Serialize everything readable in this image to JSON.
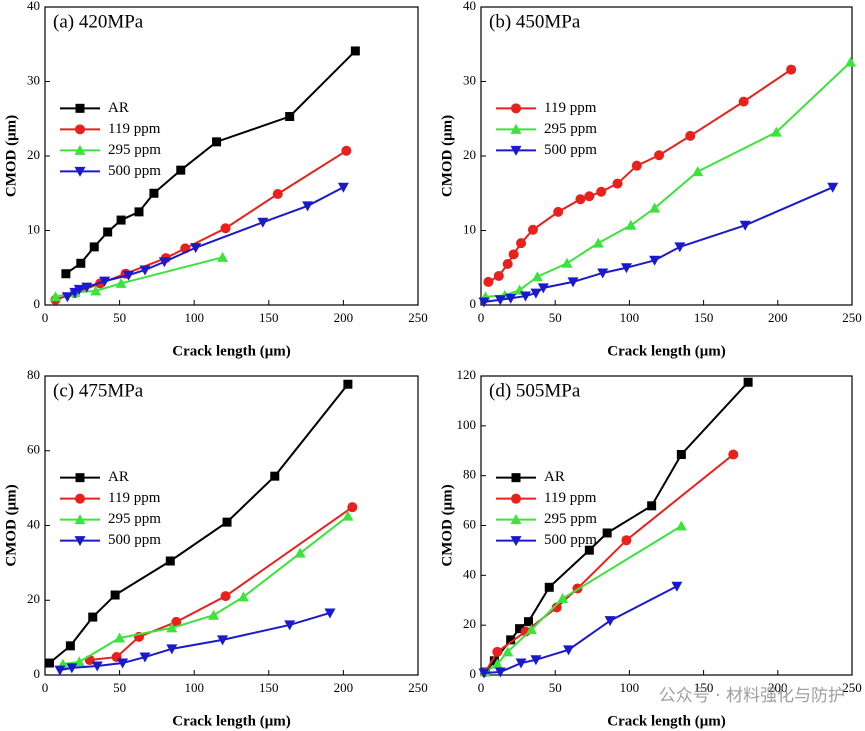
{
  "chart_data": [
    {
      "type": "line",
      "title": "(a) 420MPa",
      "x_label": "Crack length (μm)",
      "y_label": "CMOD (μm)",
      "xlim": [
        0,
        250
      ],
      "xticks": [
        0,
        50,
        100,
        150,
        200,
        250
      ],
      "ylim": [
        0,
        40
      ],
      "yticks": [
        0,
        10,
        20,
        30,
        40
      ],
      "legend": "upper left",
      "series": [
        {
          "name": "AR",
          "color": "#000000",
          "marker": "square",
          "x": [
            14,
            24,
            33,
            42,
            51,
            63,
            73,
            91,
            115,
            164,
            208
          ],
          "values": [
            4.2,
            5.6,
            7.8,
            9.8,
            11.4,
            12.5,
            15.0,
            18.1,
            21.9,
            25.3,
            34.1
          ]
        },
        {
          "name": "119 ppm",
          "color": "#e8211c",
          "marker": "circle",
          "x": [
            7,
            20,
            37,
            54,
            81,
            94,
            121,
            156,
            202
          ],
          "values": [
            0.7,
            1.6,
            2.9,
            4.2,
            6.3,
            7.6,
            10.3,
            14.9,
            20.7
          ]
        },
        {
          "name": "295 ppm",
          "color": "#3ce33c",
          "marker": "triangle-up",
          "x": [
            7,
            20,
            34,
            51,
            119
          ],
          "values": [
            1.1,
            1.7,
            1.9,
            2.9,
            6.4
          ]
        },
        {
          "name": "500 ppm",
          "color": "#1a1acc",
          "marker": "triangle-down",
          "x": [
            15,
            20,
            23,
            28,
            40,
            56,
            67,
            80,
            101,
            146,
            176,
            200
          ],
          "values": [
            1.1,
            1.7,
            2.1,
            2.4,
            3.2,
            4.0,
            4.7,
            5.8,
            7.7,
            11.1,
            13.3,
            15.8
          ]
        }
      ]
    },
    {
      "type": "line",
      "title": "(b) 450MPa",
      "x_label": "Crack length (μm)",
      "y_label": "CMOD (μm)",
      "xlim": [
        0,
        250
      ],
      "xticks": [
        0,
        50,
        100,
        150,
        200,
        250
      ],
      "ylim": [
        0,
        40
      ],
      "yticks": [
        0,
        10,
        20,
        30,
        40
      ],
      "legend": "upper left",
      "series": [
        {
          "name": "119 ppm",
          "color": "#e8211c",
          "marker": "circle",
          "x": [
            5,
            12,
            18,
            22,
            27,
            35,
            52,
            67,
            73,
            81,
            92,
            105,
            120,
            141,
            177,
            209
          ],
          "values": [
            3.1,
            3.9,
            5.5,
            6.8,
            8.3,
            10.1,
            12.5,
            14.2,
            14.6,
            15.2,
            16.3,
            18.7,
            20.1,
            22.7,
            27.3,
            31.6
          ]
        },
        {
          "name": "295 ppm",
          "color": "#3ce33c",
          "marker": "triangle-up",
          "x": [
            3,
            16,
            26,
            38,
            58,
            79,
            101,
            117,
            146,
            199,
            249
          ],
          "values": [
            1.1,
            1.3,
            2.0,
            3.8,
            5.6,
            8.3,
            10.7,
            13.0,
            17.9,
            23.2,
            32.6
          ]
        },
        {
          "name": "500 ppm",
          "color": "#1a1acc",
          "marker": "triangle-down",
          "x": [
            2,
            13,
            20,
            30,
            37,
            42,
            62,
            82,
            98,
            117,
            134,
            178,
            237
          ],
          "values": [
            0.4,
            0.7,
            0.9,
            1.2,
            1.6,
            2.3,
            3.1,
            4.3,
            5.0,
            6.0,
            7.8,
            10.7,
            15.8
          ]
        }
      ]
    },
    {
      "type": "line",
      "title": "(c) 475MPa",
      "x_label": "Crack length (μm)",
      "y_label": "CMOD (μm)",
      "xlim": [
        0,
        250
      ],
      "xticks": [
        0,
        50,
        100,
        150,
        200,
        250
      ],
      "ylim": [
        0,
        80
      ],
      "yticks": [
        0,
        20,
        40,
        60,
        80
      ],
      "legend": "upper left",
      "series": [
        {
          "name": "AR",
          "color": "#000000",
          "marker": "square",
          "x": [
            3,
            17,
            32,
            47,
            84,
            122,
            154,
            203
          ],
          "values": [
            3.2,
            7.8,
            15.5,
            21.4,
            30.5,
            40.9,
            53.2,
            77.8
          ]
        },
        {
          "name": "119 ppm",
          "color": "#e8211c",
          "marker": "circle",
          "x": [
            30,
            48,
            63,
            88,
            121,
            206
          ],
          "values": [
            4.0,
            4.8,
            10.2,
            14.2,
            21.1,
            44.9
          ]
        },
        {
          "name": "295 ppm",
          "color": "#3ce33c",
          "marker": "triangle-up",
          "x": [
            12,
            23,
            50,
            85,
            113,
            133,
            171,
            203
          ],
          "values": [
            2.9,
            3.5,
            9.9,
            12.6,
            16.0,
            20.9,
            32.6,
            42.5
          ]
        },
        {
          "name": "500 ppm",
          "color": "#1a1acc",
          "marker": "triangle-down",
          "x": [
            10,
            18,
            35,
            52,
            67,
            85,
            119,
            164,
            191
          ],
          "values": [
            1.3,
            1.9,
            2.4,
            3.2,
            4.8,
            7.0,
            9.4,
            13.4,
            16.6
          ]
        }
      ]
    },
    {
      "type": "line",
      "title": "(d) 505MPa",
      "x_label": "Crack length (μm)",
      "y_label": "CMOD (μm)",
      "xlim": [
        0,
        250
      ],
      "xticks": [
        0,
        50,
        100,
        150,
        200,
        250
      ],
      "ylim": [
        0,
        120
      ],
      "yticks": [
        0,
        20,
        40,
        60,
        80,
        100,
        120
      ],
      "legend": "upper left",
      "series": [
        {
          "name": "AR",
          "color": "#000000",
          "marker": "square",
          "x": [
            3,
            9,
            20,
            26,
            32,
            46,
            73,
            85,
            115,
            135,
            180
          ],
          "values": [
            1.2,
            5.7,
            14.1,
            18.6,
            21.4,
            35.2,
            50.1,
            57.0,
            67.9,
            88.5,
            117.5
          ]
        },
        {
          "name": "119 ppm",
          "color": "#e8211c",
          "marker": "circle",
          "x": [
            3,
            11,
            30,
            51,
            65,
            98,
            170
          ],
          "values": [
            1.2,
            9.3,
            17.4,
            27.1,
            34.7,
            54.1,
            88.5
          ]
        },
        {
          "name": "295 ppm",
          "color": "#3ce33c",
          "marker": "triangle-up",
          "x": [
            3,
            11,
            18,
            34,
            55,
            135
          ],
          "values": [
            1.2,
            4.4,
            9.3,
            18.2,
            30.7,
            59.8
          ]
        },
        {
          "name": "500 ppm",
          "color": "#1a1acc",
          "marker": "triangle-down",
          "x": [
            2,
            13,
            27,
            37,
            59,
            87,
            132
          ],
          "values": [
            0.8,
            1.2,
            4.8,
            6.1,
            10.1,
            21.8,
            35.6
          ]
        }
      ]
    }
  ],
  "watermark": "公众号 · 材料强化与防护"
}
